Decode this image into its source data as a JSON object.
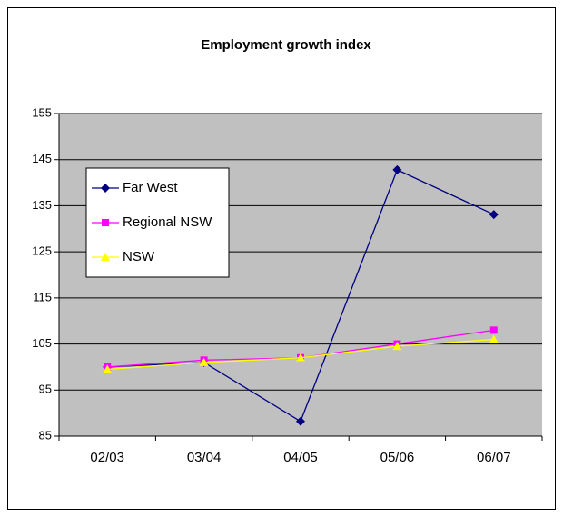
{
  "chart_data": {
    "type": "line",
    "title": "Employment growth index",
    "categories": [
      "02/03",
      "03/04",
      "04/05",
      "05/06",
      "06/07"
    ],
    "series": [
      {
        "name": "Far West",
        "color": "#000080",
        "marker": "diamond",
        "values": [
          100,
          101,
          88.2,
          142.8,
          133.1
        ]
      },
      {
        "name": "Regional NSW",
        "color": "#ff00ff",
        "marker": "square",
        "values": [
          100,
          101.5,
          102,
          105,
          108
        ]
      },
      {
        "name": "NSW",
        "color": "#ffff00",
        "marker": "triangle",
        "values": [
          99.5,
          101,
          102,
          104.5,
          106
        ]
      }
    ],
    "ylim": [
      85,
      155
    ],
    "yticks": [
      85,
      95,
      105,
      115,
      125,
      135,
      145,
      155
    ],
    "grid": true,
    "plot_background": "#c0c0c0",
    "legend": "upper left"
  }
}
